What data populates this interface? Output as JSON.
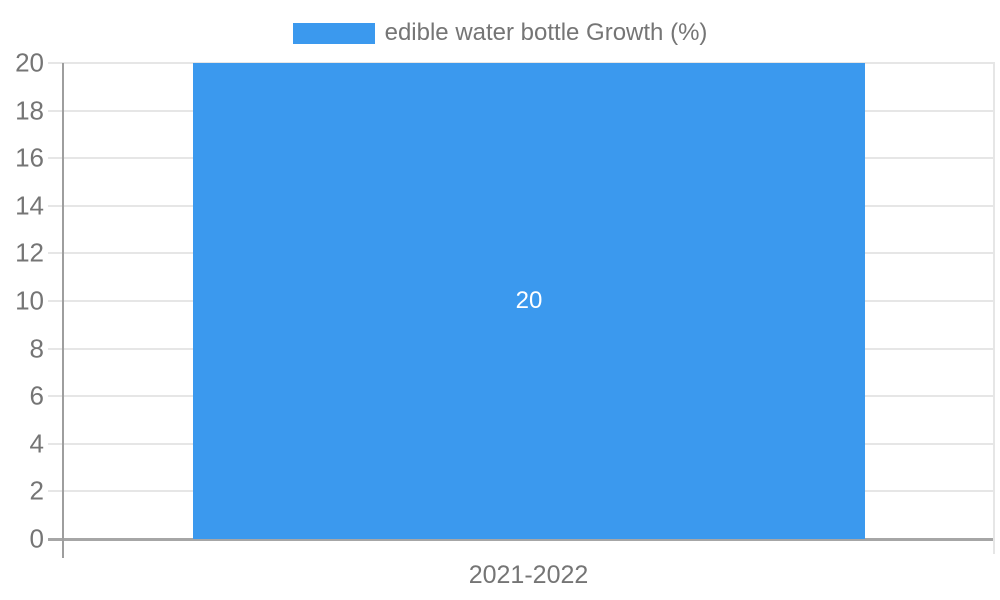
{
  "chart_data": {
    "type": "bar",
    "title": "",
    "categories": [
      "2021-2022"
    ],
    "series": [
      {
        "name": "edible water bottle Growth (%)",
        "values": [
          20
        ]
      }
    ],
    "ylim": [
      0,
      20
    ],
    "ytick_step": 2,
    "ytick_labels": [
      "0",
      "2",
      "4",
      "6",
      "8",
      "10",
      "12",
      "14",
      "16",
      "18",
      "20"
    ],
    "grid": true,
    "legend_position": "top",
    "data_labels": [
      20
    ],
    "xlabel": "",
    "ylabel": ""
  },
  "colors": {
    "bar": "#3b99ee",
    "text": "#757575",
    "grid": "#e6e6e6",
    "axis": "#9e9e9e",
    "baseline": "#a6a6a6",
    "data_label": "#ffffff",
    "background": "#ffffff"
  }
}
